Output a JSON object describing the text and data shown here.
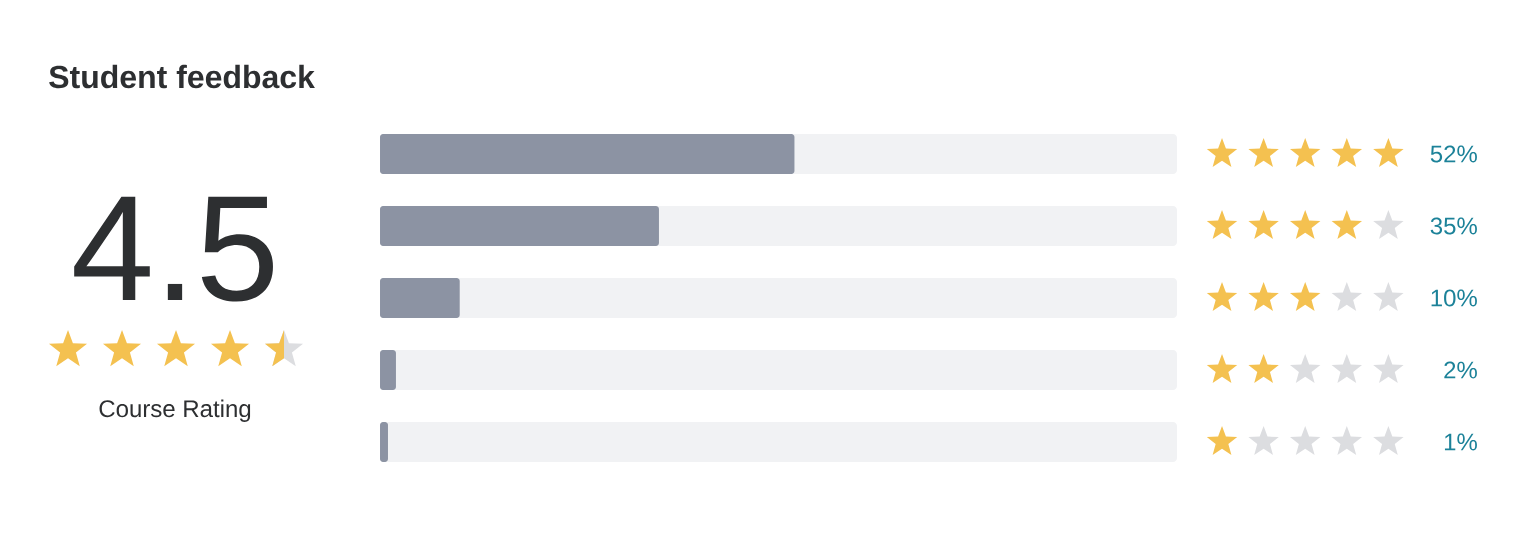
{
  "chart_data": {
    "type": "bar",
    "orientation": "horizontal",
    "title": "Student feedback",
    "annotations": [
      "4.5",
      "Course Rating"
    ],
    "categories": [
      null,
      null,
      null,
      null,
      null
    ],
    "values": [
      52,
      35,
      10,
      2,
      1
    ],
    "value_labels": [
      "52%",
      "35%",
      "10%",
      "2%",
      "1%"
    ],
    "color": "#8c93a3",
    "xlim": [
      0,
      100
    ],
    "tick_labels": false
  }
}
